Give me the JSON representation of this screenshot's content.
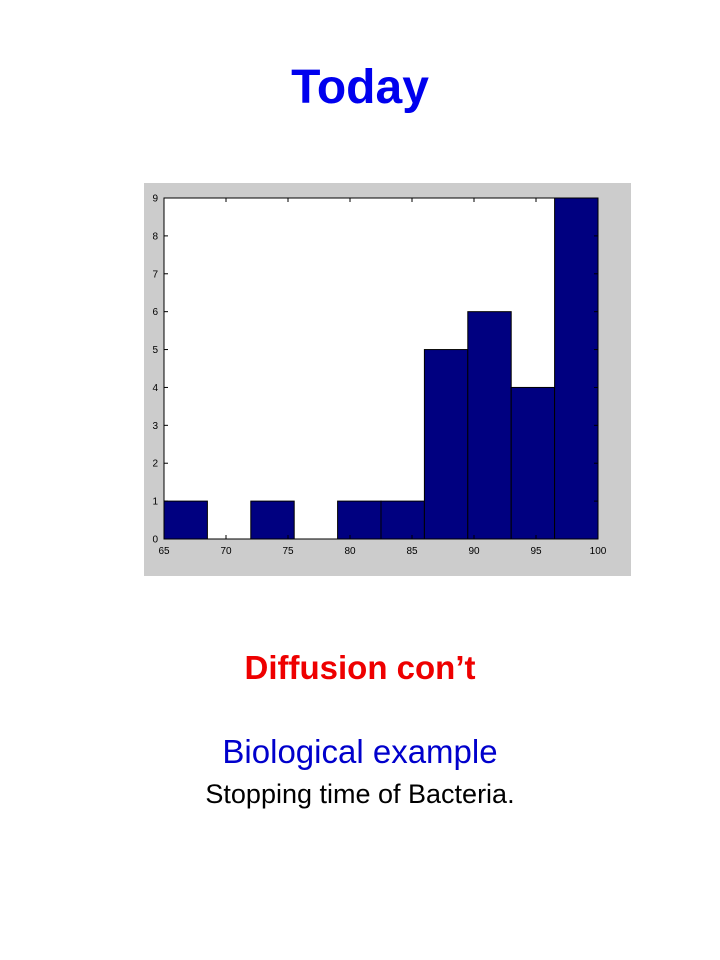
{
  "slide": {
    "title": "Today",
    "subtitle": "Diffusion con’t",
    "example_heading": "Biological example",
    "example_caption": "Stopping time of Bacteria."
  },
  "colors": {
    "title": "#0000ee",
    "subtitle": "#ee0000",
    "example_heading": "#0000cc",
    "bar_fill": "#000080",
    "figure_background": "#cccccc"
  },
  "chart_data": {
    "type": "bar",
    "title": "",
    "xlabel": "",
    "ylabel": "",
    "xlim": [
      65,
      100
    ],
    "ylim": [
      0,
      9
    ],
    "x_ticks": [
      65,
      70,
      75,
      80,
      85,
      90,
      95,
      100
    ],
    "y_ticks": [
      0,
      1,
      2,
      3,
      4,
      5,
      6,
      7,
      8,
      9
    ],
    "bin_edges": [
      65,
      68.5,
      72,
      75.5,
      79,
      82.5,
      86,
      89.5,
      93,
      96.5,
      100
    ],
    "values": [
      1,
      0,
      1,
      0,
      1,
      1,
      5,
      6,
      4,
      9
    ],
    "grid": false,
    "legend": "none"
  }
}
